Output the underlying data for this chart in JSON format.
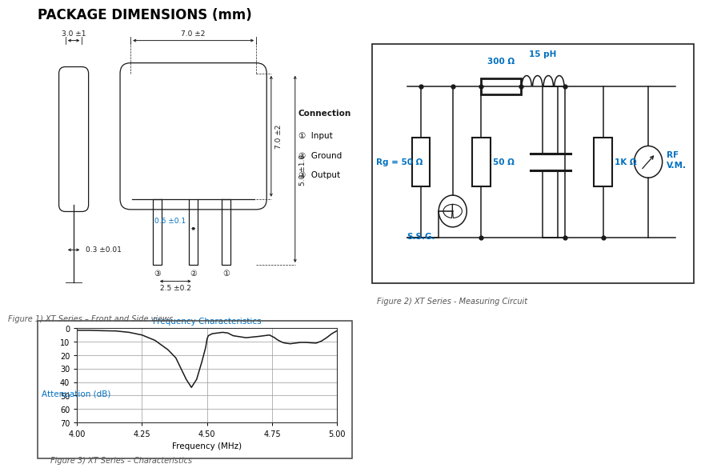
{
  "title": "PACKAGE DIMENSIONS (mm)",
  "title_color": "#000000",
  "title_fontsize": 12,
  "bg_color": "#ffffff",
  "fig1_caption": "Figure 1) XT Series – Front and Side views",
  "fig2_caption": "Figure 2) XT Series - Measuring Circuit",
  "fig3_caption": "Figure 3) XT Series – Characteristics",
  "connection_label": "Connection",
  "conn_items": [
    "①  Input",
    "②  Ground",
    "③  Output"
  ],
  "conn_color": "#000000",
  "conn_circle_color": "#0070c0",
  "dim_top_left": "3.0 ±1",
  "dim_top_mid": "7.0 ±2",
  "dim_right_top": "7.0 ±2",
  "dim_right_bot": "5.0 ±1.0",
  "dim_pin_spacing": "2.5 ±0.2",
  "dim_pin_width": "0.6 ±0.1",
  "dim_side_thick": "0.3 ±0.01",
  "lbl_rg": "Rg = 50 Ω",
  "lbl_ssg": "S.S.G.",
  "lbl_300": "300 Ω",
  "lbl_50": "50 Ω",
  "lbl_15ph": "15 pH",
  "lbl_1k": "1K Ω",
  "lbl_rf": "RF\nV.M.",
  "lbl_color": "#0070c0",
  "graph_title": "Frequency Characteristics",
  "graph_title_color": "#0070c0",
  "xmin": 4.0,
  "xmax": 5.0,
  "ymin": 0,
  "ymax": 70,
  "xticks": [
    4.0,
    4.25,
    4.5,
    4.75,
    5.0
  ],
  "yticks": [
    0,
    10,
    20,
    30,
    40,
    50,
    60,
    70
  ],
  "xlabel": "Frequency (MHz)",
  "ylabel": "Attenuation (dB)",
  "ylabel_color": "#0070c0",
  "curve_color": "#1a1a1a",
  "freq_data": [
    4.0,
    4.05,
    4.1,
    4.15,
    4.2,
    4.25,
    4.3,
    4.35,
    4.38,
    4.4,
    4.42,
    4.44,
    4.46,
    4.48,
    4.495,
    4.5,
    4.505,
    4.52,
    4.54,
    4.56,
    4.58,
    4.6,
    4.65,
    4.7,
    4.72,
    4.74,
    4.76,
    4.77,
    4.78,
    4.79,
    4.8,
    4.82,
    4.84,
    4.86,
    4.88,
    4.9,
    4.92,
    4.94,
    4.96,
    4.98,
    5.0
  ],
  "atten_data": [
    1.5,
    1.5,
    1.8,
    2.0,
    3.0,
    5.0,
    9.0,
    16.0,
    22.0,
    30.0,
    38.0,
    44.0,
    38.0,
    25.0,
    14.0,
    8.0,
    5.5,
    4.0,
    3.5,
    3.0,
    3.5,
    5.5,
    7.0,
    6.0,
    5.5,
    5.0,
    7.0,
    8.5,
    9.5,
    10.5,
    11.0,
    11.5,
    11.0,
    10.5,
    10.5,
    10.8,
    11.0,
    9.5,
    7.0,
    4.0,
    1.8
  ]
}
